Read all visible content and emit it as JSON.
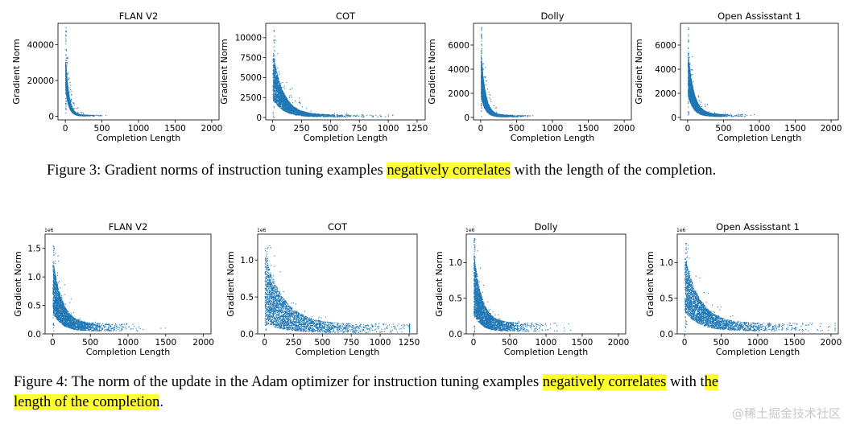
{
  "chart_data": [
    {
      "figure": 3,
      "type": "scatter",
      "title": "FLAN V2",
      "xlabel": "Completion Length",
      "ylabel": "Gradient Norm",
      "xlim": [
        -100,
        2100
      ],
      "ylim": [
        -2000,
        52000
      ],
      "xticks": [
        0,
        500,
        1000,
        1500,
        2000
      ],
      "yticks": [
        0,
        20000,
        40000
      ],
      "ytick_labels": [
        "0",
        "20000",
        "40000"
      ],
      "offset_label": "",
      "color": "#1f77b4",
      "trend": {
        "peak": 50000,
        "floor": 600,
        "decay": 45,
        "x_end": 2000,
        "spread": 0.35
      }
    },
    {
      "figure": 3,
      "type": "scatter",
      "title": "COT",
      "xlabel": "Completion Length",
      "ylabel": "Gradient Norm",
      "xlim": [
        -60,
        1320
      ],
      "ylim": [
        -300,
        11800
      ],
      "xticks": [
        0,
        250,
        500,
        750,
        1000,
        1250
      ],
      "yticks": [
        0,
        2500,
        5000,
        7500,
        10000
      ],
      "ytick_labels": [
        "0",
        "2500",
        "5000",
        "7500",
        "10000"
      ],
      "offset_label": "",
      "color": "#1f77b4",
      "trend": {
        "peak": 11000,
        "floor": 250,
        "decay": 90,
        "x_end": 1250,
        "spread": 0.55
      }
    },
    {
      "figure": 3,
      "type": "scatter",
      "title": "Dolly",
      "xlabel": "Completion Length",
      "ylabel": "Gradient Norm",
      "xlim": [
        -100,
        2100
      ],
      "ylim": [
        -200,
        7800
      ],
      "xticks": [
        0,
        500,
        1000,
        1500,
        2000
      ],
      "yticks": [
        0,
        2000,
        4000,
        6000
      ],
      "ytick_labels": [
        "0",
        "2000",
        "4000",
        "6000"
      ],
      "offset_label": "",
      "color": "#1f77b4",
      "trend": {
        "peak": 7500,
        "floor": 150,
        "decay": 60,
        "x_end": 2000,
        "spread": 0.5
      }
    },
    {
      "figure": 3,
      "type": "scatter",
      "title": "Open Assisstant 1",
      "xlabel": "Completion Length",
      "ylabel": "Gradient Norm",
      "xlim": [
        -100,
        2100
      ],
      "ylim": [
        -200,
        7800
      ],
      "xticks": [
        0,
        500,
        1000,
        1500,
        2000
      ],
      "yticks": [
        0,
        2000,
        4000,
        6000
      ],
      "ytick_labels": [
        "0",
        "2000",
        "4000",
        "6000"
      ],
      "offset_label": "",
      "color": "#1f77b4",
      "trend": {
        "peak": 7600,
        "floor": 200,
        "decay": 80,
        "x_end": 2050,
        "spread": 0.5
      }
    },
    {
      "figure": 4,
      "type": "scatter",
      "title": "FLAN V2",
      "xlabel": "Completion Length",
      "ylabel": "Gradient Norm",
      "xlim": [
        -100,
        2100
      ],
      "ylim": [
        0,
        1.75
      ],
      "xticks": [
        0,
        500,
        1000,
        1500,
        2000
      ],
      "yticks": [
        0,
        0.5,
        1.0,
        1.5
      ],
      "ytick_labels": [
        "0.0",
        "0.5",
        "1.0",
        "1.5"
      ],
      "offset_label": "1e6",
      "color": "#1f77b4",
      "trend": {
        "peak": 1.6,
        "floor": 0.12,
        "decay": 120,
        "x_end": 2000,
        "spread": 0.55
      }
    },
    {
      "figure": 4,
      "type": "scatter",
      "title": "COT",
      "xlabel": "Completion Length",
      "ylabel": "Gradient Norm",
      "xlim": [
        -60,
        1320
      ],
      "ylim": [
        0,
        1.35
      ],
      "xticks": [
        0,
        250,
        500,
        750,
        1000,
        1250
      ],
      "yticks": [
        0,
        0.5,
        1.0
      ],
      "ytick_labels": [
        "0.0",
        "0.5",
        "1.0"
      ],
      "offset_label": "1e6",
      "color": "#1f77b4",
      "trend": {
        "peak": 1.2,
        "floor": 0.08,
        "decay": 160,
        "x_end": 1250,
        "spread": 0.75
      }
    },
    {
      "figure": 4,
      "type": "scatter",
      "title": "Dolly",
      "xlabel": "Completion Length",
      "ylabel": "Gradient Norm",
      "xlim": [
        -100,
        2100
      ],
      "ylim": [
        0,
        1.4
      ],
      "xticks": [
        0,
        500,
        1000,
        1500,
        2000
      ],
      "yticks": [
        0,
        0.5,
        1.0
      ],
      "ytick_labels": [
        "0.0",
        "0.5",
        "1.0"
      ],
      "offset_label": "1e6",
      "color": "#1f77b4",
      "trend": {
        "peak": 1.35,
        "floor": 0.1,
        "decay": 110,
        "x_end": 2000,
        "spread": 0.6
      }
    },
    {
      "figure": 4,
      "type": "scatter",
      "title": "Open Assisstant 1",
      "xlabel": "Completion Length",
      "ylabel": "Gradient Norm",
      "xlim": [
        -100,
        2100
      ],
      "ylim": [
        0,
        1.4
      ],
      "xticks": [
        0,
        500,
        1000,
        1500,
        2000
      ],
      "yticks": [
        0,
        0.5,
        1.0
      ],
      "ytick_labels": [
        "0.0",
        "0.5",
        "1.0"
      ],
      "offset_label": "1e6",
      "color": "#1f77b4",
      "trend": {
        "peak": 1.35,
        "floor": 0.1,
        "decay": 200,
        "x_end": 2050,
        "spread": 0.55
      }
    }
  ],
  "captions": {
    "figure3": {
      "pre": "Figure 3: Gradient norms of instruction tuning examples ",
      "highlight": "negatively correlates",
      "post": " with the length of the completion."
    },
    "figure4": {
      "pre": "Figure 4:  The norm of the update in the Adam optimizer for instruction tuning examples ",
      "highlight": "negatively correlates",
      "mid": " with t",
      "highlight2": "he",
      "highlight3": "length of the completion",
      "post": "."
    }
  },
  "watermark": "@稀土掘金技术社区",
  "colors": {
    "points": "#1f77b4",
    "highlight": "#ffff2e"
  }
}
